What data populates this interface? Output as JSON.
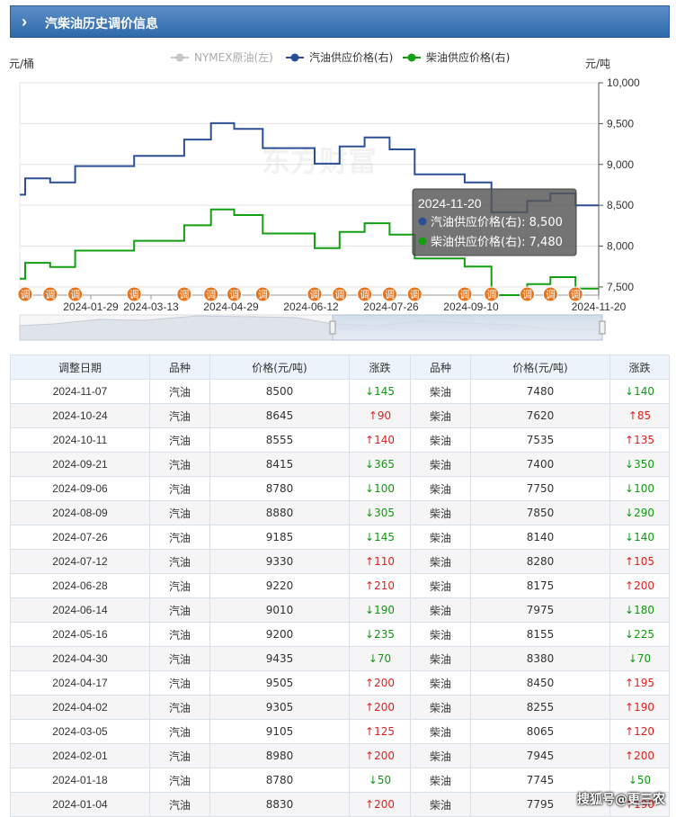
{
  "header": {
    "title": "汽柴油历史调价信息"
  },
  "chart_data": {
    "type": "line",
    "left_unit": "元/桶",
    "right_unit": "元/吨",
    "y_right_ticks": [
      "10,000",
      "9,500",
      "9,000",
      "8,500",
      "8,000",
      "7,500"
    ],
    "ylim_right": [
      7400,
      10000
    ],
    "x_tick_labels": [
      "2024-01-29",
      "2024-03-13",
      "2024-04-29",
      "2024-06-12",
      "2024-07-26",
      "2024-09-10",
      "2024-11-20"
    ],
    "x_start": "2024-01-01",
    "x_end": "2024-11-20",
    "legend": [
      {
        "name": "NYMEX原油(左)",
        "color": "#c8c8c8"
      },
      {
        "name": "汽油供应价格(右)",
        "color": "#2c4f96"
      },
      {
        "name": "柴油供应价格(右)",
        "color": "#12a012"
      }
    ],
    "series": [
      {
        "name": "汽油供应价格(右)",
        "color": "#2c4f96",
        "dates": [
          "2024-01-04",
          "2024-01-18",
          "2024-02-01",
          "2024-03-05",
          "2024-04-02",
          "2024-04-17",
          "2024-04-30",
          "2024-05-16",
          "2024-06-14",
          "2024-06-28",
          "2024-07-12",
          "2024-07-26",
          "2024-08-09",
          "2024-09-06",
          "2024-09-21",
          "2024-10-11",
          "2024-10-24",
          "2024-11-07"
        ],
        "values": [
          8830,
          8780,
          8980,
          9105,
          9305,
          9505,
          9435,
          9200,
          9010,
          9220,
          9330,
          9185,
          8880,
          8780,
          8415,
          8555,
          8645,
          8500
        ]
      },
      {
        "name": "柴油供应价格(右)",
        "color": "#12a012",
        "dates": [
          "2024-01-04",
          "2024-01-18",
          "2024-02-01",
          "2024-03-05",
          "2024-04-02",
          "2024-04-17",
          "2024-04-30",
          "2024-05-16",
          "2024-06-14",
          "2024-06-28",
          "2024-07-12",
          "2024-07-26",
          "2024-08-09",
          "2024-09-06",
          "2024-09-21",
          "2024-10-11",
          "2024-10-24",
          "2024-11-07"
        ],
        "values": [
          7795,
          7745,
          7945,
          8065,
          8255,
          8450,
          8380,
          8155,
          7975,
          8175,
          8280,
          8140,
          7850,
          7750,
          7400,
          7535,
          7620,
          7480
        ]
      }
    ],
    "start_values": {
      "汽油供应价格(右)": 8630,
      "柴油供应价格(右)": 7600
    },
    "marker_label": "调",
    "tooltip": {
      "date": "2024-11-20",
      "line1": "汽油供应价格(右): 8,500",
      "line2": "柴油供应价格(右): 7,480"
    },
    "watermark": "东方财富"
  },
  "table": {
    "headers": [
      "调整日期",
      "品种",
      "价格(元/吨)",
      "涨跌",
      "品种",
      "价格(元/吨)",
      "涨跌"
    ],
    "rows": [
      [
        "2024-11-07",
        "汽油",
        "8500",
        "↓145",
        "柴油",
        "7480",
        "↓140"
      ],
      [
        "2024-10-24",
        "汽油",
        "8645",
        "↑90",
        "柴油",
        "7620",
        "↑85"
      ],
      [
        "2024-10-11",
        "汽油",
        "8555",
        "↑140",
        "柴油",
        "7535",
        "↑135"
      ],
      [
        "2024-09-21",
        "汽油",
        "8415",
        "↓365",
        "柴油",
        "7400",
        "↓350"
      ],
      [
        "2024-09-06",
        "汽油",
        "8780",
        "↓100",
        "柴油",
        "7750",
        "↓100"
      ],
      [
        "2024-08-09",
        "汽油",
        "8880",
        "↓305",
        "柴油",
        "7850",
        "↓290"
      ],
      [
        "2024-07-26",
        "汽油",
        "9185",
        "↓145",
        "柴油",
        "8140",
        "↓140"
      ],
      [
        "2024-07-12",
        "汽油",
        "9330",
        "↑110",
        "柴油",
        "8280",
        "↑105"
      ],
      [
        "2024-06-28",
        "汽油",
        "9220",
        "↑210",
        "柴油",
        "8175",
        "↑200"
      ],
      [
        "2024-06-14",
        "汽油",
        "9010",
        "↓190",
        "柴油",
        "7975",
        "↓180"
      ],
      [
        "2024-05-16",
        "汽油",
        "9200",
        "↓235",
        "柴油",
        "8155",
        "↓225"
      ],
      [
        "2024-04-30",
        "汽油",
        "9435",
        "↓70",
        "柴油",
        "8380",
        "↓70"
      ],
      [
        "2024-04-17",
        "汽油",
        "9505",
        "↑200",
        "柴油",
        "8450",
        "↑195"
      ],
      [
        "2024-04-02",
        "汽油",
        "9305",
        "↑200",
        "柴油",
        "8255",
        "↑190"
      ],
      [
        "2024-03-05",
        "汽油",
        "9105",
        "↑125",
        "柴油",
        "8065",
        "↑120"
      ],
      [
        "2024-02-01",
        "汽油",
        "8980",
        "↑200",
        "柴油",
        "7945",
        "↑200"
      ],
      [
        "2024-01-18",
        "汽油",
        "8780",
        "↓50",
        "柴油",
        "7745",
        "↓50"
      ],
      [
        "2024-01-04",
        "汽油",
        "8830",
        "↑200",
        "柴油",
        "7795",
        "↑190"
      ]
    ]
  },
  "watermark_corner": "搜狐号@更三农"
}
